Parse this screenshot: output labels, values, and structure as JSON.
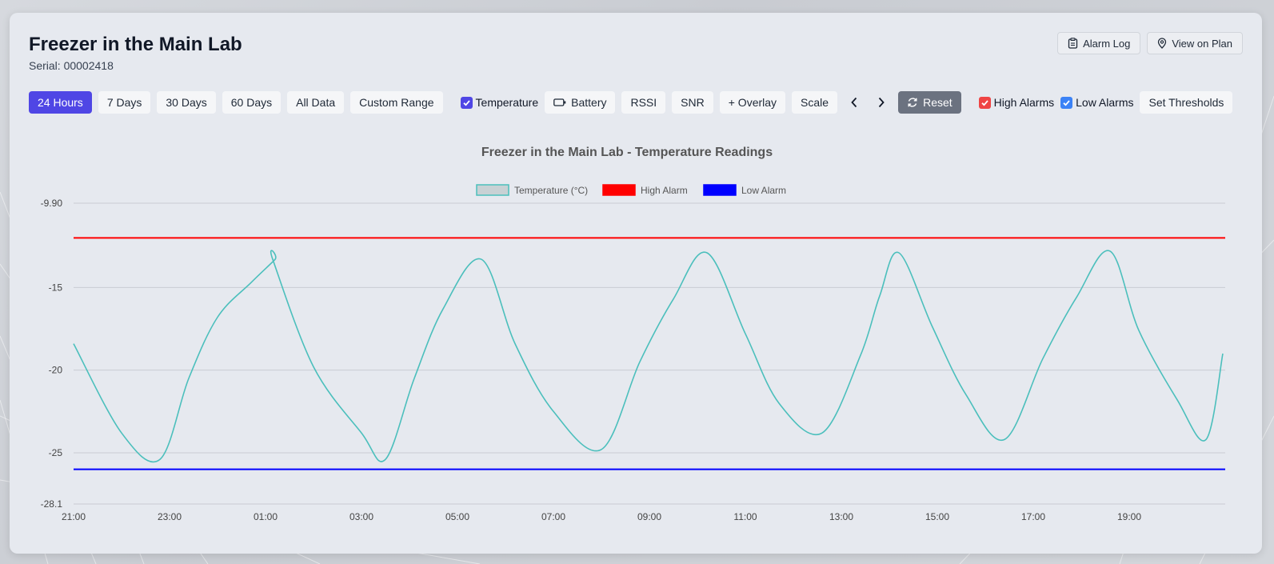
{
  "header": {
    "title": "Freezer in the Main Lab",
    "serial": "Serial: 00002418",
    "alarm_log_label": "Alarm Log",
    "view_on_plan_label": "View on Plan"
  },
  "toolbar": {
    "ranges": [
      "24 Hours",
      "7 Days",
      "30 Days",
      "60 Days",
      "All Data",
      "Custom Range"
    ],
    "active_range": "24 Hours",
    "temperature_label": "Temperature",
    "temperature_checked": true,
    "battery_label": "Battery",
    "rssi_label": "RSSI",
    "snr_label": "SNR",
    "overlay_label": "+ Overlay",
    "scale_label": "Scale",
    "reset_label": "Reset",
    "high_alarms_label": "High Alarms",
    "high_alarms_checked": true,
    "low_alarms_label": "Low Alarms",
    "low_alarms_checked": true,
    "set_thresholds_label": "Set Thresholds"
  },
  "colors": {
    "accent": "#4f46e5",
    "high_alarm_check": "#ef4444",
    "low_alarm_check": "#3b82f6",
    "temperature_line": "#4bbfbc",
    "high_alarm_line": "#ff0000",
    "low_alarm_line": "#0000ff"
  },
  "chart_data": {
    "type": "line",
    "title": "Freezer in the Main Lab - Temperature Readings",
    "xlabel": "",
    "ylabel": "",
    "ylim": [
      -28.1,
      -9.9
    ],
    "yticks": [
      "-9.90",
      "-15",
      "-20",
      "-25",
      "-28.1"
    ],
    "xticks": [
      "21:00",
      "23:00",
      "01:00",
      "03:00",
      "05:00",
      "07:00",
      "09:00",
      "11:00",
      "13:00",
      "15:00",
      "17:00",
      "19:00"
    ],
    "legend_position": "top-center",
    "grid": true,
    "series": [
      {
        "name": "Temperature (°C)",
        "x_hours_from_2100": [
          0,
          1.0,
          1.8,
          2.4,
          3.0,
          3.7,
          4.2,
          4.15,
          5.0,
          6.0,
          6.5,
          7.1,
          7.7,
          8.5,
          9.2,
          10.0,
          11.0,
          11.8,
          12.5,
          13.2,
          14.0,
          14.7,
          15.6,
          16.4,
          16.8,
          17.2,
          17.9,
          18.6,
          19.4,
          20.2,
          20.9,
          21.6,
          22.2,
          23.0,
          23.6,
          23.95
        ],
        "y": [
          -18.4,
          -23.8,
          -25.4,
          -20.5,
          -16.8,
          -14.7,
          -13.3,
          -13.3,
          -19.8,
          -23.8,
          -25.4,
          -20.5,
          -16.3,
          -13.3,
          -18.4,
          -22.5,
          -24.8,
          -19.5,
          -15.7,
          -12.9,
          -17.8,
          -22.0,
          -23.8,
          -19.1,
          -15.5,
          -12.9,
          -17.4,
          -21.5,
          -24.2,
          -19.3,
          -15.6,
          -12.8,
          -17.6,
          -21.8,
          -24.2,
          -19.0
        ]
      },
      {
        "name": "High Alarm",
        "constant": -12.0
      },
      {
        "name": "Low Alarm",
        "constant": -26.0
      }
    ]
  }
}
